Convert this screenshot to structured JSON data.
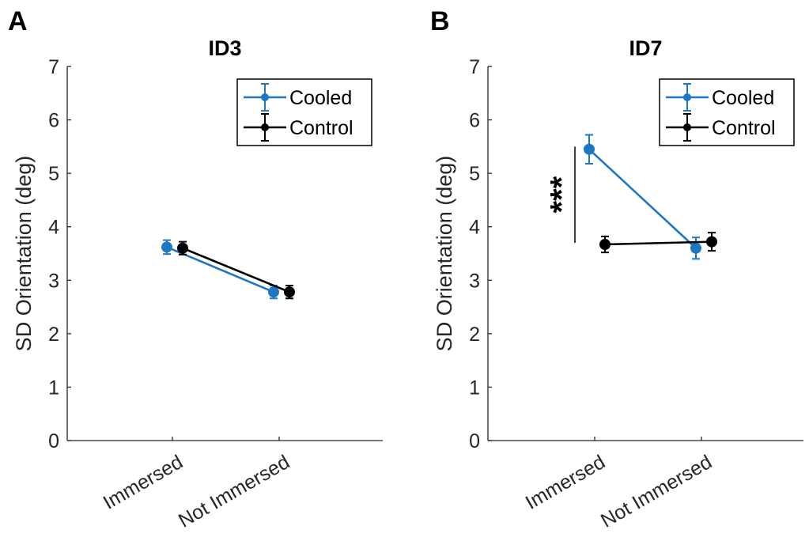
{
  "chart_data": [
    {
      "type": "line",
      "panel_label": "A",
      "title": "ID3",
      "xlabel": "",
      "ylabel": "SD Orientation (deg)",
      "categories": [
        "Immersed",
        "Not Immersed"
      ],
      "ylim": [
        0,
        7
      ],
      "yticks": [
        0,
        1,
        2,
        3,
        4,
        5,
        6,
        7
      ],
      "grid": false,
      "legend_position": "top-right",
      "series": [
        {
          "name": "Cooled",
          "color": "#1f77c4",
          "values": [
            3.62,
            2.78
          ],
          "errors": [
            0.13,
            0.12
          ]
        },
        {
          "name": "Control",
          "color": "#000000",
          "values": [
            3.6,
            2.78
          ],
          "errors": [
            0.12,
            0.12
          ]
        }
      ],
      "annotations": []
    },
    {
      "type": "line",
      "panel_label": "B",
      "title": "ID7",
      "xlabel": "",
      "ylabel": "SD Orientation (deg)",
      "categories": [
        "Immersed",
        "Not Immersed"
      ],
      "ylim": [
        0,
        7
      ],
      "yticks": [
        0,
        1,
        2,
        3,
        4,
        5,
        6,
        7
      ],
      "grid": false,
      "legend_position": "top-right",
      "series": [
        {
          "name": "Cooled",
          "color": "#1f77c4",
          "values": [
            5.45,
            3.6
          ],
          "errors": [
            0.27,
            0.2
          ]
        },
        {
          "name": "Control",
          "color": "#000000",
          "values": [
            3.67,
            3.72
          ],
          "errors": [
            0.15,
            0.17
          ]
        }
      ],
      "annotations": [
        {
          "text": "***"
        }
      ]
    }
  ]
}
